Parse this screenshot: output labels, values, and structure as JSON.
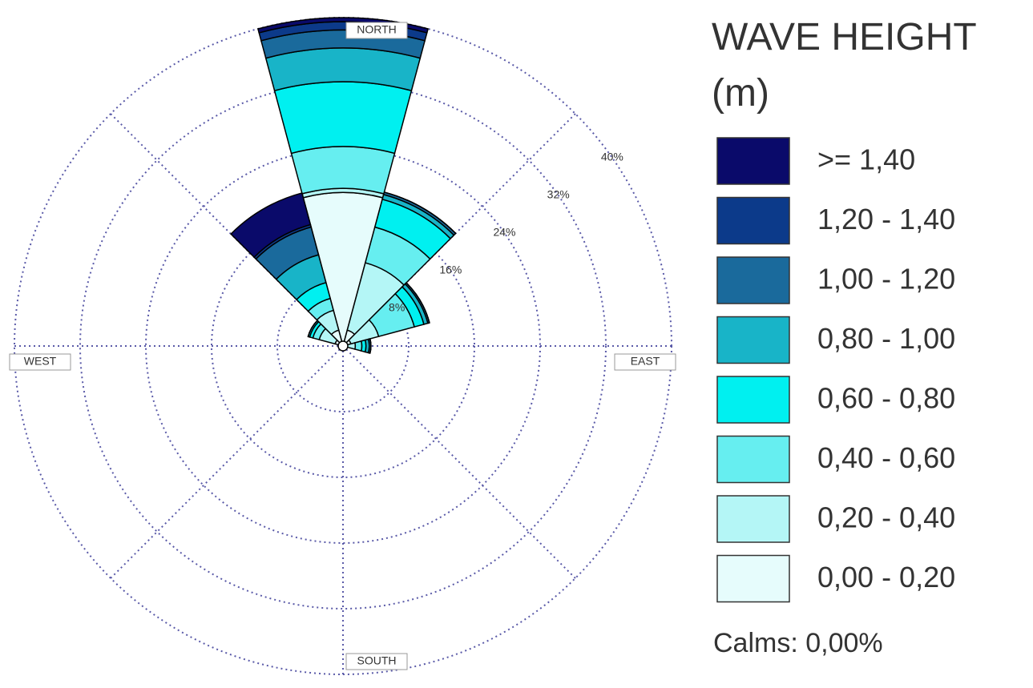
{
  "chart_data": {
    "type": "windrose",
    "x": [
      0,
      30,
      60,
      90,
      120,
      150,
      180,
      210,
      240,
      270,
      300,
      330
    ],
    "xlim": [
      0,
      360
    ],
    "rlim": [
      0,
      40
    ],
    "rticks": [
      {
        "value": 8,
        "label": "8%"
      },
      {
        "value": 16,
        "label": "16%"
      },
      {
        "value": 24,
        "label": "24%"
      },
      {
        "value": 32,
        "label": "32%"
      },
      {
        "value": 40,
        "label": "40%"
      }
    ],
    "grid": true,
    "direction_labels": [
      "NORTH",
      "EAST",
      "SOUTH",
      "WEST"
    ],
    "legend_title": "WAVE HEIGHT (m)",
    "calms": "Calms: 0,00%",
    "series": [
      {
        "name": "0,00 - 0,20",
        "color": "#e6fcfc",
        "values": [
          18.7,
          2.0,
          1.0,
          0.5,
          0,
          0,
          0,
          0,
          0,
          0,
          1.0,
          2.0
        ]
      },
      {
        "name": "0,20 - 0,40",
        "color": "#b4f6f6",
        "values": [
          0.5,
          8.5,
          3.5,
          1.0,
          0,
          0,
          0,
          0,
          0,
          0,
          2.0,
          2.5
        ]
      },
      {
        "name": "0,40 - 0,60",
        "color": "#66eef0",
        "values": [
          5.1,
          4.5,
          4.5,
          0.8,
          0,
          0,
          0,
          0,
          0,
          0,
          0.8,
          1.5
        ]
      },
      {
        "name": "0,60 - 0,80",
        "color": "#00f0f0",
        "values": [
          7.9,
          3.5,
          1.2,
          0.5,
          0,
          0,
          0,
          0,
          0,
          0,
          0.4,
          2.0
        ]
      },
      {
        "name": "0,80 - 1,00",
        "color": "#18b4c8",
        "values": [
          4.1,
          0.6,
          0.5,
          0.4,
          0,
          0,
          0,
          0,
          0,
          0,
          0.2,
          3.5
        ]
      },
      {
        "name": "1,00 - 1,20",
        "color": "#1a6a9c",
        "values": [
          2.2,
          0.3,
          0.2,
          0.2,
          0,
          0,
          0,
          0,
          0,
          0,
          0,
          3.5
        ]
      },
      {
        "name": "1,20 - 1,40",
        "color": "#0c3a8a",
        "values": [
          1.0,
          0,
          0,
          0,
          0,
          0,
          0,
          0,
          0,
          0,
          0,
          0.3
        ]
      },
      {
        "name": ">= 1,40",
        "color": "#0a0a6a",
        "values": [
          0.5,
          0,
          0,
          0,
          0,
          0,
          0,
          0,
          0,
          0,
          0,
          4.0
        ]
      }
    ]
  }
}
